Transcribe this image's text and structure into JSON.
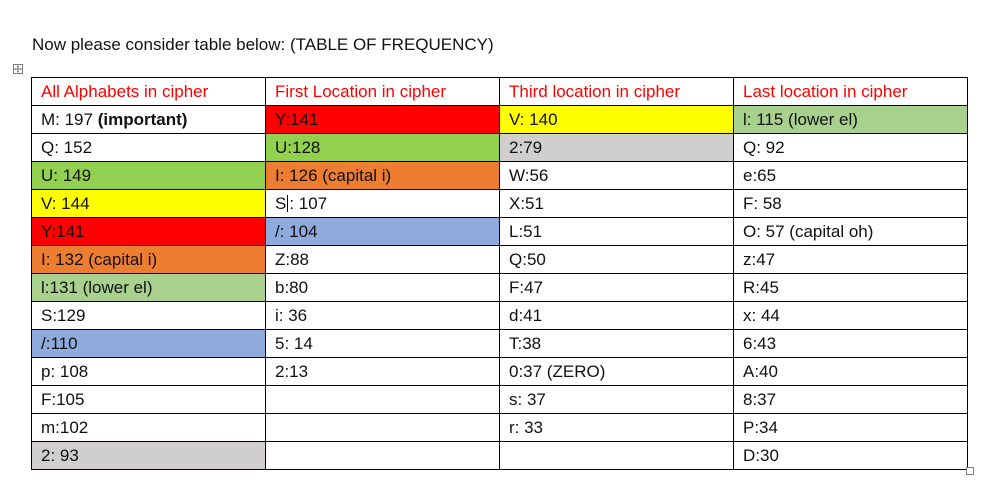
{
  "intro_text": "Now please consider table below: (TABLE OF FREQUENCY)",
  "table": {
    "header_color": "#ff0000",
    "headers": [
      "All Alphabets in cipher",
      "First Location in cipher",
      "Third location in cipher",
      "Last location in cipher"
    ],
    "rows": [
      [
        {
          "text": "M: 197 ",
          "suffix": "(important)",
          "suffix_bold": true
        },
        {
          "text": "Y:141",
          "bg": "#ff0000"
        },
        {
          "text": "V: 140",
          "bg": "#ffff00"
        },
        {
          "text": "l: 115 (lower el)",
          "bg": "#a9d18e"
        }
      ],
      [
        {
          "text": "Q: 152"
        },
        {
          "text": "U:128",
          "bg": "#92d050"
        },
        {
          "text": "2:79",
          "bg": "#d0cece"
        },
        {
          "text": "Q: 92"
        }
      ],
      [
        {
          "text": "U: 149",
          "bg": "#92d050"
        },
        {
          "text": "I: 126 (capital i)",
          "bg": "#ed7d31"
        },
        {
          "text": "W:56"
        },
        {
          "text": "e:65"
        }
      ],
      [
        {
          "text": "V: 144",
          "bg": "#ffff00"
        },
        {
          "text": "S: 107",
          "caret_after": 1
        },
        {
          "text": "X:51"
        },
        {
          "text": "F: 58"
        }
      ],
      [
        {
          "text": "Y:141",
          "bg": "#ff0000"
        },
        {
          "text": "/: 104",
          "bg": "#8faadc"
        },
        {
          "text": "L:51"
        },
        {
          "text": "O: 57 (capital oh)"
        }
      ],
      [
        {
          "text": "I: 132 (capital i)",
          "bg": "#ed7d31"
        },
        {
          "text": "Z:88"
        },
        {
          "text": "Q:50"
        },
        {
          "text": "z:47"
        }
      ],
      [
        {
          "text": "l:131 (lower el)",
          "bg": "#a9d18e"
        },
        {
          "text": "b:80"
        },
        {
          "text": "F:47"
        },
        {
          "text": "R:45"
        }
      ],
      [
        {
          "text": "S:129"
        },
        {
          "text": "i: 36"
        },
        {
          "text": "d:41"
        },
        {
          "text": "x: 44"
        }
      ],
      [
        {
          "text": "/:110",
          "bg": "#8faadc"
        },
        {
          "text": "5: 14"
        },
        {
          "text": "T:38"
        },
        {
          "text": "6:43"
        }
      ],
      [
        {
          "text": "p: 108"
        },
        {
          "text": "2:13"
        },
        {
          "text": "0:37 (ZERO)"
        },
        {
          "text": "A:40"
        }
      ],
      [
        {
          "text": "F:105"
        },
        {
          "text": ""
        },
        {
          "text": "s: 37"
        },
        {
          "text": "8:37"
        }
      ],
      [
        {
          "text": "m:102"
        },
        {
          "text": ""
        },
        {
          "text": "r: 33"
        },
        {
          "text": "P:34"
        }
      ],
      [
        {
          "text": "2: 93",
          "bg": "#d0cece"
        },
        {
          "text": ""
        },
        {
          "text": ""
        },
        {
          "text": "D:30"
        }
      ]
    ]
  }
}
